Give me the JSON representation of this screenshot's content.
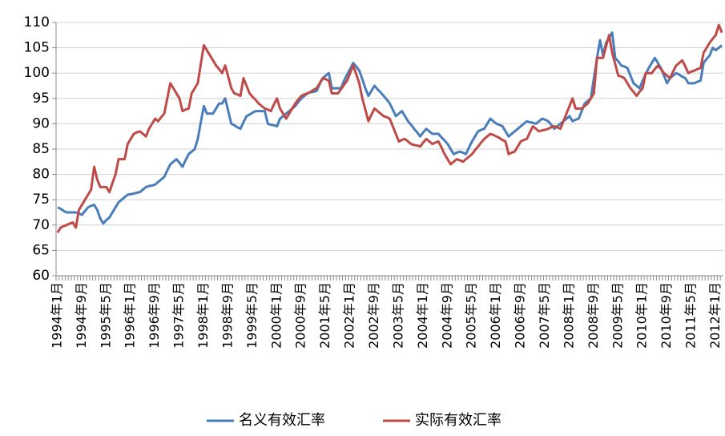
{
  "chart_data": {
    "type": "line",
    "categories": [
      "1994年1月",
      null,
      null,
      null,
      null,
      null,
      null,
      null,
      "1994年9月",
      null,
      null,
      null,
      null,
      null,
      null,
      null,
      "1995年5月",
      null,
      null,
      null,
      null,
      null,
      null,
      null,
      "1996年1月",
      null,
      null,
      null,
      null,
      null,
      null,
      null,
      "1996年9月",
      null,
      null,
      null,
      null,
      null,
      null,
      null,
      "1997年5月",
      null,
      null,
      null,
      null,
      null,
      null,
      null,
      "1998年1月",
      null,
      null,
      null,
      null,
      null,
      null,
      null,
      "1998年9月",
      null,
      null,
      null,
      null,
      null,
      null,
      null,
      "1999年5月",
      null,
      null,
      null,
      null,
      null,
      null,
      null,
      "2000年1月",
      null,
      null,
      null,
      null,
      null,
      null,
      null,
      "2000年9月",
      null,
      null,
      null,
      null,
      null,
      null,
      null,
      "2001年5月",
      null,
      null,
      null,
      null,
      null,
      null,
      null,
      "2002年1月",
      null,
      null,
      null,
      null,
      null,
      null,
      null,
      "2002年9月",
      null,
      null,
      null,
      null,
      null,
      null,
      null,
      "2003年5月",
      null,
      null,
      null,
      null,
      null,
      null,
      null,
      "2004年1月",
      null,
      null,
      null,
      null,
      null,
      null,
      null,
      "2004年9月",
      null,
      null,
      null,
      null,
      null,
      null,
      null,
      "2005年5月",
      null,
      null,
      null,
      null,
      null,
      null,
      null,
      "2006年1月",
      null,
      null,
      null,
      null,
      null,
      null,
      null,
      "2006年9月",
      null,
      null,
      null,
      null,
      null,
      null,
      null,
      "2007年5月",
      null,
      null,
      null,
      null,
      null,
      null,
      null,
      "2008年1月",
      null,
      null,
      null,
      null,
      null,
      null,
      null,
      "2008年9月",
      null,
      null,
      null,
      null,
      null,
      null,
      null,
      "2009年5月",
      null,
      null,
      null,
      null,
      null,
      null,
      null,
      "2010年1月",
      null,
      null,
      null,
      null,
      null,
      null,
      null,
      "2010年9月",
      null,
      null,
      null,
      null,
      null,
      null,
      null,
      "2011年5月",
      null,
      null,
      null,
      null,
      null,
      null,
      null,
      "2012年1月",
      null,
      null
    ],
    "series": [
      {
        "name": "名义有效汇率",
        "color": "#4a7ebb",
        "values": [
          73.5,
          73.2,
          72.8,
          72.5,
          72.5,
          72.5,
          72.5,
          72.3,
          72,
          72.8,
          73.5,
          73.8,
          74,
          73,
          71.3,
          70.3,
          71,
          71.5,
          72.5,
          73.5,
          74.5,
          75,
          75.5,
          76,
          76.1,
          76.2,
          76.4,
          76.5,
          77,
          77.5,
          77.7,
          77.8,
          78,
          78.5,
          79,
          79.5,
          80.8,
          82,
          82.5,
          83,
          82.3,
          81.5,
          82.8,
          84,
          84.5,
          85,
          87,
          90.3,
          93.5,
          92,
          92,
          92,
          93,
          94,
          94,
          95,
          92.5,
          90,
          89.7,
          89.3,
          89,
          90.3,
          91.5,
          91.8,
          92.2,
          92.5,
          92.5,
          92.5,
          92.5,
          90,
          89.8,
          89.7,
          89.5,
          91,
          91.5,
          92,
          92.5,
          93,
          93.5,
          94.3,
          95,
          95.5,
          96,
          96.2,
          96.3,
          96.5,
          97.8,
          99,
          99.5,
          100,
          97,
          97,
          97,
          97,
          98.5,
          99.7,
          100.8,
          102,
          101.3,
          100.5,
          98.8,
          97,
          95.5,
          96.5,
          97.5,
          96.8,
          96.2,
          95.5,
          94.8,
          94,
          92.8,
          91.5,
          92,
          92.5,
          91.5,
          90.5,
          89.8,
          89,
          88.3,
          87.5,
          88.3,
          89,
          88.5,
          88,
          88,
          88,
          87.3,
          86.7,
          86,
          85,
          84,
          84.3,
          84.5,
          84.3,
          84,
          85.3,
          86.5,
          87.5,
          88.5,
          88.8,
          89,
          90,
          91,
          90.5,
          90,
          89.8,
          89.5,
          88.5,
          87.5,
          88,
          88.5,
          89,
          89.5,
          90,
          90.5,
          90.3,
          90.2,
          90,
          90.5,
          91,
          90.8,
          90.5,
          89.8,
          89,
          89.5,
          90,
          90.5,
          91,
          91.5,
          90.5,
          90.8,
          91,
          92.5,
          94,
          94.5,
          95,
          99,
          102.8,
          106.5,
          103.5,
          106,
          107,
          108,
          103,
          102.3,
          101.5,
          101.3,
          101,
          99.5,
          98,
          97.5,
          97,
          98.5,
          99.8,
          101,
          102,
          103,
          102,
          101,
          99.5,
          98,
          99,
          99.5,
          100,
          99.7,
          99.3,
          99,
          98,
          98,
          98,
          98.3,
          98.5,
          102,
          102.8,
          103.5,
          105,
          104.5,
          105,
          105.5
        ]
      },
      {
        "name": "实际有效汇率",
        "color": "#be4b48",
        "values": [
          68.5,
          69.5,
          69.8,
          70,
          70.3,
          70.5,
          69.5,
          73,
          74,
          75,
          76,
          77,
          81.5,
          79,
          77.5,
          77.5,
          77.5,
          76.5,
          78.3,
          80,
          83,
          83,
          83,
          86,
          87,
          88,
          88.3,
          88.5,
          88,
          87.5,
          89,
          90,
          91,
          90.5,
          91.3,
          92,
          95,
          98,
          97,
          96,
          95,
          92.5,
          92.8,
          93,
          96,
          97,
          98,
          101.8,
          105.5,
          104.5,
          103.5,
          102.5,
          101.5,
          100.8,
          100,
          101.5,
          99.3,
          97,
          96,
          95.8,
          95.5,
          99,
          97.5,
          96,
          95.3,
          94.7,
          94,
          93.5,
          93,
          92.8,
          92.5,
          93.8,
          95,
          93,
          92,
          91,
          92,
          93,
          94,
          94.8,
          95.5,
          95.8,
          96,
          96.3,
          96.7,
          97,
          98,
          99,
          98.8,
          98.5,
          96,
          96,
          96,
          96.8,
          97.7,
          98.5,
          100,
          101.5,
          99.8,
          98,
          95,
          92.8,
          90.5,
          91.8,
          93,
          92.5,
          92,
          91.5,
          91.3,
          91,
          89.5,
          88,
          86.5,
          86.8,
          87,
          86.5,
          86,
          85.8,
          85.7,
          85.5,
          86.3,
          87,
          86.5,
          86,
          86.3,
          86.5,
          85.3,
          84,
          83,
          82,
          82.5,
          83,
          82.8,
          82.5,
          83,
          83.5,
          84,
          84.8,
          85.5,
          86.3,
          87,
          87.5,
          88,
          87.8,
          87.5,
          87.2,
          86.8,
          86.5,
          84,
          84.3,
          84.5,
          85.5,
          86.5,
          86.8,
          87,
          88.3,
          89.5,
          89,
          88.5,
          88.7,
          88.8,
          89,
          89.3,
          89.5,
          89.3,
          89,
          90.5,
          92,
          93.5,
          95,
          93,
          93,
          93,
          93.5,
          94,
          95,
          96,
          103,
          103,
          103,
          105.3,
          107.5,
          104,
          101.8,
          99.5,
          99.3,
          99,
          98,
          97,
          96.3,
          95.5,
          96.3,
          97,
          100,
          100,
          100,
          100.8,
          101.5,
          100.8,
          100,
          99.5,
          99,
          100.3,
          101.5,
          102,
          102.5,
          101.3,
          100,
          100.3,
          100.5,
          100.8,
          101,
          104,
          105,
          106,
          106.8,
          107.5,
          109.5,
          108
        ]
      }
    ],
    "ylim": [
      60,
      110
    ],
    "yticks": [
      60,
      65,
      70,
      75,
      80,
      85,
      90,
      95,
      100,
      105,
      110
    ],
    "grid": true,
    "legend": "bottom"
  }
}
